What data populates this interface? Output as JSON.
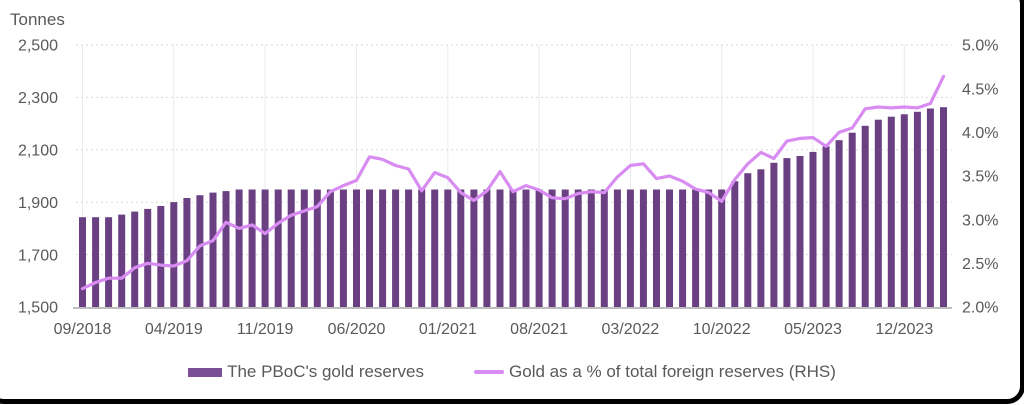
{
  "page": {
    "background": "#ffffff",
    "frame_border_color": "#000000"
  },
  "chart": {
    "y_left_title": "Tonnes",
    "colors": {
      "bar": "#6a4083",
      "bar_swatch": "#7a4f96",
      "line": "#d88cf2",
      "grid": "#d9d9d9",
      "vgrid": "#ebebeb",
      "baseline": "#bdbdbd",
      "text": "#595959"
    }
  },
  "chart_data": {
    "type": "bar+line dual-axis combo",
    "title": "",
    "x": [
      "09/2018",
      "10/2018",
      "11/2018",
      "12/2018",
      "01/2019",
      "02/2019",
      "03/2019",
      "04/2019",
      "05/2019",
      "06/2019",
      "07/2019",
      "08/2019",
      "09/2019",
      "10/2019",
      "11/2019",
      "12/2019",
      "01/2020",
      "02/2020",
      "03/2020",
      "04/2020",
      "05/2020",
      "06/2020",
      "07/2020",
      "08/2020",
      "09/2020",
      "10/2020",
      "11/2020",
      "12/2020",
      "01/2021",
      "02/2021",
      "03/2021",
      "04/2021",
      "05/2021",
      "06/2021",
      "07/2021",
      "08/2021",
      "09/2021",
      "10/2021",
      "11/2021",
      "12/2021",
      "01/2022",
      "02/2022",
      "03/2022",
      "04/2022",
      "05/2022",
      "06/2022",
      "07/2022",
      "08/2022",
      "09/2022",
      "10/2022",
      "11/2022",
      "12/2022",
      "01/2023",
      "02/2023",
      "03/2023",
      "04/2023",
      "05/2023",
      "06/2023",
      "07/2023",
      "08/2023",
      "09/2023",
      "10/2023",
      "11/2023",
      "12/2023",
      "01/2024",
      "02/2024",
      "03/2024"
    ],
    "x_ticks": [
      {
        "index": 0,
        "label": "09/2018"
      },
      {
        "index": 7,
        "label": "04/2019"
      },
      {
        "index": 14,
        "label": "11/2019"
      },
      {
        "index": 21,
        "label": "06/2020"
      },
      {
        "index": 28,
        "label": "01/2021"
      },
      {
        "index": 35,
        "label": "08/2021"
      },
      {
        "index": 42,
        "label": "03/2022"
      },
      {
        "index": 49,
        "label": "10/2022"
      },
      {
        "index": 56,
        "label": "05/2023"
      },
      {
        "index": 63,
        "label": "12/2023"
      }
    ],
    "left_axis": {
      "title": "Tonnes",
      "min": 1500,
      "max": 2500,
      "ticks": [
        {
          "label": "2,500",
          "value": 2500
        },
        {
          "label": "2,300",
          "value": 2300
        },
        {
          "label": "2,100",
          "value": 2100
        },
        {
          "label": "1,900",
          "value": 1900
        },
        {
          "label": "1,700",
          "value": 1700
        },
        {
          "label": "1,500",
          "value": 1500
        }
      ]
    },
    "right_axis": {
      "min": 2.0,
      "max": 5.0,
      "ticks": [
        {
          "label": "5.0%",
          "value": 5.0
        },
        {
          "label": "4.5%",
          "value": 4.5
        },
        {
          "label": "4.0%",
          "value": 4.0
        },
        {
          "label": "3.5%",
          "value": 3.5
        },
        {
          "label": "3.0%",
          "value": 3.0
        },
        {
          "label": "2.5%",
          "value": 2.5
        },
        {
          "label": "2.0%",
          "value": 2.0
        }
      ]
    },
    "series": [
      {
        "name": "The PBoC's gold reserves",
        "type": "bar",
        "axis": "left",
        "unit": "tonnes",
        "color": "#6a4083",
        "values": [
          1842.6,
          1842.6,
          1842.6,
          1852.5,
          1864.3,
          1874.3,
          1885.5,
          1900.4,
          1916.0,
          1926.6,
          1936.5,
          1942.4,
          1948.3,
          1948.3,
          1948.3,
          1948.3,
          1948.3,
          1948.3,
          1948.3,
          1948.3,
          1948.3,
          1948.3,
          1948.3,
          1948.3,
          1948.3,
          1948.3,
          1948.3,
          1948.3,
          1948.3,
          1948.3,
          1948.3,
          1948.3,
          1948.3,
          1948.3,
          1948.3,
          1948.3,
          1948.3,
          1948.3,
          1948.3,
          1948.3,
          1948.3,
          1948.3,
          1948.3,
          1948.3,
          1948.3,
          1948.3,
          1948.3,
          1948.3,
          1948.3,
          1948.3,
          1980.3,
          2010.5,
          2025.4,
          2050.3,
          2068.4,
          2076.5,
          2092.0,
          2113.2,
          2136.5,
          2165.4,
          2191.5,
          2214.7,
          2226.4,
          2235.4,
          2245.1,
          2257.5,
          2262.5
        ]
      },
      {
        "name": "Gold as a % of total foreign reserves (RHS)",
        "type": "line",
        "axis": "right",
        "unit": "%",
        "color": "#d88cf2",
        "values": [
          2.21,
          2.28,
          2.33,
          2.33,
          2.45,
          2.5,
          2.48,
          2.47,
          2.53,
          2.7,
          2.76,
          2.97,
          2.9,
          2.94,
          2.84,
          2.96,
          3.05,
          3.1,
          3.15,
          3.32,
          3.39,
          3.45,
          3.72,
          3.69,
          3.62,
          3.58,
          3.33,
          3.54,
          3.48,
          3.31,
          3.22,
          3.33,
          3.55,
          3.32,
          3.39,
          3.34,
          3.25,
          3.24,
          3.3,
          3.32,
          3.31,
          3.49,
          3.62,
          3.64,
          3.47,
          3.5,
          3.44,
          3.35,
          3.31,
          3.21,
          3.46,
          3.64,
          3.77,
          3.7,
          3.9,
          3.93,
          3.94,
          3.84,
          4.0,
          4.05,
          4.27,
          4.29,
          4.28,
          4.29,
          4.28,
          4.33,
          4.64
        ]
      }
    ],
    "legend_position": "bottom",
    "grid": "horizontal dotted + vertical light at labeled ticks"
  }
}
